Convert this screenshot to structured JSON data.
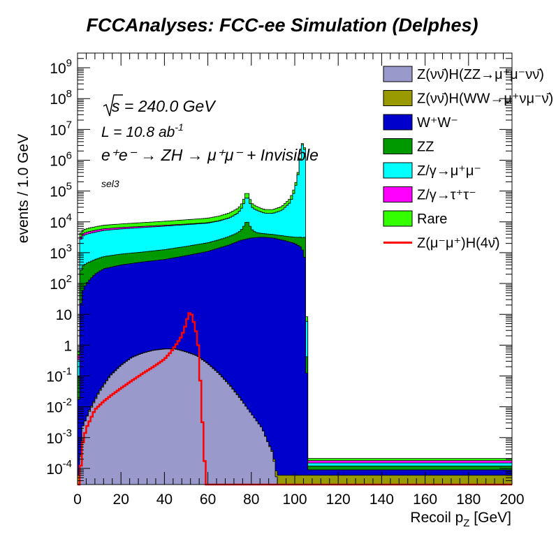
{
  "chart_data": {
    "type": "stacked-histogram",
    "title": "FCCAnalyses: FCC-ee Simulation (Delphes)",
    "xlabel": "Recoil p",
    "xlabel_sub": "Z",
    "xlabel_unit": " [GeV]",
    "ylabel": "events / 1.0 GeV",
    "xlim": [
      0,
      200
    ],
    "ylim": [
      3e-05,
      3000000000
    ],
    "yscale": "log",
    "bin_width": 1.0,
    "x_ticks": [
      0,
      20,
      40,
      60,
      80,
      100,
      120,
      140,
      160,
      180,
      200
    ],
    "y_ticks": [
      {
        "v": 0.0001,
        "base": "10",
        "exp": "-4"
      },
      {
        "v": 0.001,
        "base": "10",
        "exp": "-3"
      },
      {
        "v": 0.01,
        "base": "10",
        "exp": "-2"
      },
      {
        "v": 0.1,
        "base": "10",
        "exp": "-1"
      },
      {
        "v": 1,
        "base": "1",
        "exp": ""
      },
      {
        "v": 10,
        "base": "10",
        "exp": ""
      },
      {
        "v": 100,
        "base": "10",
        "exp": "2"
      },
      {
        "v": 1000,
        "base": "10",
        "exp": "3"
      },
      {
        "v": 10000,
        "base": "10",
        "exp": "4"
      },
      {
        "v": 100000,
        "base": "10",
        "exp": "5"
      },
      {
        "v": 1000000,
        "base": "10",
        "exp": "6"
      },
      {
        "v": 10000000,
        "base": "10",
        "exp": "7"
      },
      {
        "v": 100000000,
        "base": "10",
        "exp": "8"
      },
      {
        "v": 1000000000,
        "base": "10",
        "exp": "9"
      }
    ],
    "annotations": {
      "energy": "s = 240.0 GeV",
      "lumi_prefix": "L = 10.8 ab",
      "lumi_exp": "-1",
      "process": "e⁺e⁻ → ZH → μ⁺μ⁻ + Invisible",
      "selection": "sel3"
    },
    "legend_position": "top-right",
    "stack_order": [
      "zz_vvh_mumu",
      "ww_vvh_mumu",
      "ww",
      "zz",
      "z_mumu",
      "z_tautau",
      "rare"
    ],
    "series": [
      {
        "key": "zz_vvh_mumu",
        "name": "Z(νν̄)H(ZZ→μ⁺μ⁻νν̄)",
        "color": "#9999cc",
        "kind": "stack",
        "points": [
          [
            0,
            3e-05
          ],
          [
            1,
            3e-05
          ],
          [
            2,
            0.002
          ],
          [
            5,
            0.006
          ],
          [
            10,
            0.03
          ],
          [
            15,
            0.1
          ],
          [
            20,
            0.22
          ],
          [
            25,
            0.4
          ],
          [
            30,
            0.55
          ],
          [
            35,
            0.68
          ],
          [
            40,
            0.75
          ],
          [
            45,
            0.75
          ],
          [
            50,
            0.6
          ],
          [
            55,
            0.45
          ],
          [
            60,
            0.25
          ],
          [
            65,
            0.12
          ],
          [
            70,
            0.05
          ],
          [
            75,
            0.018
          ],
          [
            80,
            0.006
          ],
          [
            85,
            0.002
          ],
          [
            88,
            0.0006
          ],
          [
            90,
            0.0003
          ],
          [
            92,
            3e-05
          ],
          [
            200,
            3e-05
          ]
        ]
      },
      {
        "key": "ww_vvh_mumu",
        "name": "Z(νν̄)H(WW→μ⁺νμ⁻ν̄)",
        "color": "#999900",
        "kind": "stack",
        "points": [
          [
            0,
            3e-05
          ],
          [
            3,
            3e-05
          ],
          [
            5,
            0.0006
          ],
          [
            8,
            0.0015
          ],
          [
            12,
            0.004
          ],
          [
            18,
            0.007
          ],
          [
            22,
            0.01
          ],
          [
            28,
            0.012
          ],
          [
            32,
            0.014
          ],
          [
            38,
            0.018
          ],
          [
            42,
            0.02
          ],
          [
            46,
            0.02
          ],
          [
            50,
            0.018
          ],
          [
            55,
            0.014
          ],
          [
            60,
            0.01
          ],
          [
            65,
            0.006
          ],
          [
            70,
            0.003
          ],
          [
            74,
            0.0015
          ],
          [
            76,
            0.0006
          ],
          [
            78,
            3e-05
          ],
          [
            200,
            3e-05
          ]
        ]
      },
      {
        "key": "ww",
        "name": "W⁺W⁻",
        "color": "#0000cc",
        "kind": "stack",
        "points": [
          [
            0,
            3e-05
          ],
          [
            1,
            10
          ],
          [
            2,
            50
          ],
          [
            4,
            100
          ],
          [
            8,
            200
          ],
          [
            12,
            300
          ],
          [
            20,
            400
          ],
          [
            30,
            500
          ],
          [
            40,
            600
          ],
          [
            50,
            800
          ],
          [
            60,
            1100
          ],
          [
            70,
            1800
          ],
          [
            75,
            2500
          ],
          [
            80,
            3000
          ],
          [
            85,
            3200
          ],
          [
            90,
            3000
          ],
          [
            95,
            2500
          ],
          [
            100,
            2000
          ],
          [
            103,
            1500
          ],
          [
            104,
            1000
          ],
          [
            105,
            500
          ],
          [
            106,
            3e-05
          ],
          [
            200,
            3e-05
          ]
        ]
      },
      {
        "key": "zz",
        "name": "ZZ",
        "color": "#009900",
        "kind": "stack",
        "points": [
          [
            0,
            3e-05
          ],
          [
            1,
            200
          ],
          [
            2,
            300
          ],
          [
            4,
            350
          ],
          [
            8,
            400
          ],
          [
            12,
            450
          ],
          [
            20,
            500
          ],
          [
            30,
            550
          ],
          [
            40,
            650
          ],
          [
            50,
            800
          ],
          [
            55,
            900
          ],
          [
            60,
            1000
          ],
          [
            65,
            1200
          ],
          [
            70,
            1600
          ],
          [
            74,
            2200
          ],
          [
            76,
            3500
          ],
          [
            77,
            6000
          ],
          [
            78,
            8000
          ],
          [
            79,
            6000
          ],
          [
            80,
            3000
          ],
          [
            82,
            1500
          ],
          [
            85,
            1000
          ],
          [
            90,
            900
          ],
          [
            95,
            1000
          ],
          [
            100,
            1200
          ],
          [
            102,
            1500
          ],
          [
            104,
            2000
          ],
          [
            105,
            3000
          ],
          [
            106,
            3e-05
          ],
          [
            200,
            3e-05
          ]
        ]
      },
      {
        "key": "z_mumu",
        "name": "Z/γ→μ⁺μ⁻",
        "color": "#00ffff",
        "kind": "stack",
        "points": [
          [
            0,
            3e-05
          ],
          [
            1,
            2000
          ],
          [
            2,
            3000
          ],
          [
            4,
            3500
          ],
          [
            8,
            4000
          ],
          [
            12,
            4500
          ],
          [
            20,
            5000
          ],
          [
            30,
            5500
          ],
          [
            40,
            6000
          ],
          [
            50,
            6500
          ],
          [
            60,
            7000
          ],
          [
            65,
            8000
          ],
          [
            70,
            10000
          ],
          [
            74,
            15000
          ],
          [
            76,
            25000
          ],
          [
            77,
            40000
          ],
          [
            78,
            60000
          ],
          [
            79,
            40000
          ],
          [
            80,
            25000
          ],
          [
            82,
            20000
          ],
          [
            86,
            15000
          ],
          [
            90,
            15000
          ],
          [
            94,
            20000
          ],
          [
            98,
            40000
          ],
          [
            100,
            100000
          ],
          [
            102,
            500000
          ],
          [
            103,
            2000000
          ],
          [
            104,
            5000000
          ],
          [
            105,
            1000000
          ],
          [
            106,
            3e-05
          ],
          [
            200,
            3e-05
          ]
        ]
      },
      {
        "key": "z_tautau",
        "name": "Z/γ→τ⁺τ⁻",
        "color": "#ff00ff",
        "kind": "stack",
        "points": [
          [
            0,
            3e-05
          ],
          [
            1,
            500
          ],
          [
            2,
            600
          ],
          [
            4,
            650
          ],
          [
            8,
            700
          ],
          [
            15,
            700
          ],
          [
            25,
            650
          ],
          [
            35,
            550
          ],
          [
            45,
            450
          ],
          [
            55,
            350
          ],
          [
            65,
            250
          ],
          [
            75,
            150
          ],
          [
            85,
            80
          ],
          [
            90,
            50
          ],
          [
            95,
            30
          ],
          [
            100,
            15
          ],
          [
            103,
            8
          ],
          [
            104,
            5
          ],
          [
            105,
            2
          ],
          [
            106,
            3e-05
          ],
          [
            200,
            3e-05
          ]
        ]
      },
      {
        "key": "rare",
        "name": "Rare",
        "color": "#33ff00",
        "kind": "stack",
        "points": [
          [
            0,
            3e-05
          ],
          [
            1,
            1000
          ],
          [
            2,
            1200
          ],
          [
            4,
            1400
          ],
          [
            8,
            1600
          ],
          [
            12,
            1800
          ],
          [
            20,
            2000
          ],
          [
            30,
            2300
          ],
          [
            40,
            2700
          ],
          [
            50,
            3200
          ],
          [
            60,
            3800
          ],
          [
            65,
            4500
          ],
          [
            70,
            6000
          ],
          [
            74,
            8000
          ],
          [
            76,
            12000
          ],
          [
            77,
            20000
          ],
          [
            78,
            30000
          ],
          [
            79,
            20000
          ],
          [
            80,
            10000
          ],
          [
            82,
            8000
          ],
          [
            86,
            6000
          ],
          [
            90,
            6000
          ],
          [
            94,
            8000
          ],
          [
            98,
            15000
          ],
          [
            100,
            30000
          ],
          [
            102,
            80000
          ],
          [
            103,
            200000
          ],
          [
            104,
            500000
          ],
          [
            105,
            200000
          ],
          [
            106,
            3e-05
          ],
          [
            200,
            3e-05
          ]
        ]
      },
      {
        "key": "signal",
        "name": "Z(μ⁻μ⁺)H(4ν̄)",
        "color": "#ff0000",
        "kind": "line",
        "points": [
          [
            0,
            3e-05
          ],
          [
            1,
            3e-05
          ],
          [
            2,
            0.0005
          ],
          [
            3,
            0.001
          ],
          [
            4,
            0.002
          ],
          [
            6,
            0.004
          ],
          [
            8,
            0.008
          ],
          [
            12,
            0.015
          ],
          [
            16,
            0.025
          ],
          [
            20,
            0.04
          ],
          [
            25,
            0.07
          ],
          [
            30,
            0.12
          ],
          [
            35,
            0.2
          ],
          [
            40,
            0.35
          ],
          [
            43,
            0.6
          ],
          [
            46,
            1.2
          ],
          [
            48,
            2
          ],
          [
            50,
            5
          ],
          [
            51,
            10
          ],
          [
            52,
            12
          ],
          [
            53,
            8
          ],
          [
            54,
            4
          ],
          [
            55,
            2
          ],
          [
            56,
            0.5
          ],
          [
            57,
            0.01
          ],
          [
            58,
            0.001
          ],
          [
            59,
            3e-05
          ],
          [
            200,
            3e-05
          ]
        ]
      }
    ]
  }
}
